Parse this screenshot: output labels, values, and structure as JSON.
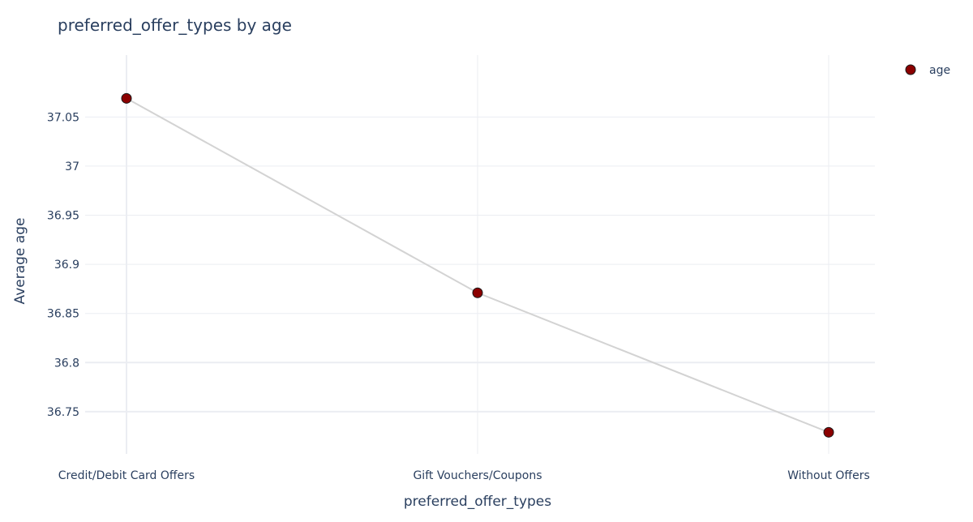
{
  "chart_data": {
    "type": "line",
    "title": "preferred_offer_types by age",
    "xlabel": "preferred_offer_types",
    "ylabel": "Average age",
    "categories": [
      "Credit/Debit Card Offers",
      "Gift Vouchers/Coupons",
      "Without Offers"
    ],
    "series": [
      {
        "name": "age",
        "values": [
          37.069,
          36.871,
          36.729
        ]
      }
    ],
    "ylim": [
      36.707,
      37.113
    ],
    "yticks": [
      36.75,
      36.8,
      36.85,
      36.9,
      36.95,
      37,
      37.05
    ],
    "ytick_labels": [
      "36.75",
      "36.8",
      "36.85",
      "36.9",
      "36.95",
      "37",
      "37.05"
    ],
    "grid": true,
    "legend_position": "top-right",
    "colors": {
      "marker_fill": "#8b0000",
      "marker_stroke": "#1a1a1a",
      "line": "#d3d3d3",
      "grid": "#ebedf2",
      "text": "#2a3f5f"
    }
  }
}
